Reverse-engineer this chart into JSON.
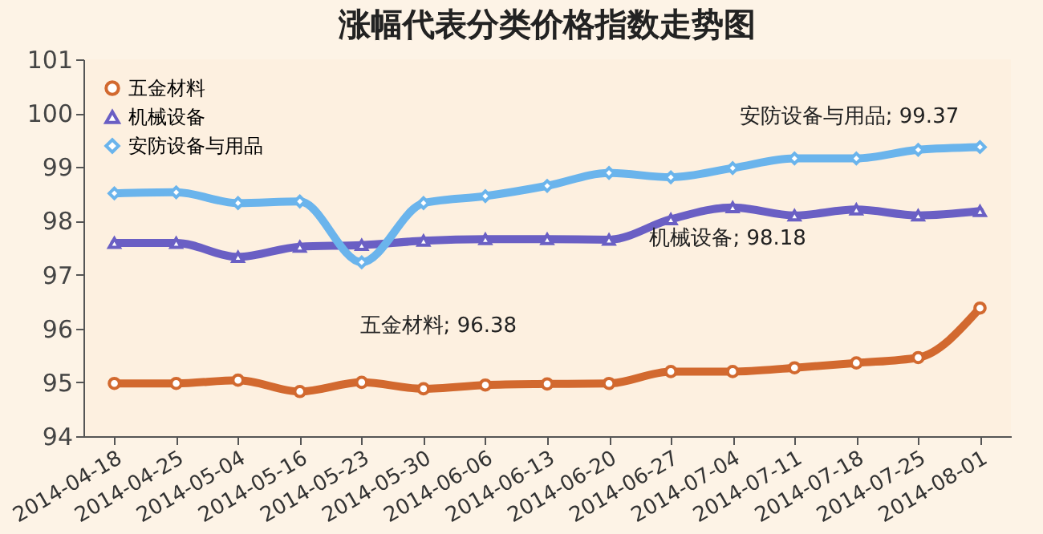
{
  "chart_data": {
    "type": "line",
    "title": "涨幅代表分类价格指数走势图",
    "categories": [
      "2014-04-18",
      "2014-04-25",
      "2014-05-04",
      "2014-05-16",
      "2014-05-23",
      "2014-05-30",
      "2014-06-06",
      "2014-06-13",
      "2014-06-20",
      "2014-06-27",
      "2014-07-04",
      "2014-07-11",
      "2014-07-18",
      "2014-07-25",
      "2014-08-01"
    ],
    "series": [
      {
        "name": "五金材料",
        "color": "#d2692f",
        "marker": "circle",
        "values": [
          94.98,
          94.98,
          95.04,
          94.83,
          95.0,
          94.88,
          94.95,
          94.97,
          94.98,
          95.2,
          95.2,
          95.27,
          95.36,
          95.46,
          96.38
        ]
      },
      {
        "name": "机械设备",
        "color": "#6a5fc4",
        "marker": "triangle",
        "values": [
          97.59,
          97.59,
          97.33,
          97.52,
          97.55,
          97.63,
          97.66,
          97.66,
          97.65,
          98.03,
          98.25,
          98.1,
          98.21,
          98.1,
          98.18
        ]
      },
      {
        "name": "安防设备与用品",
        "color": "#6ab4ec",
        "marker": "diamond",
        "values": [
          98.51,
          98.53,
          98.33,
          98.36,
          97.23,
          98.33,
          98.46,
          98.65,
          98.89,
          98.81,
          98.98,
          99.16,
          99.16,
          99.32,
          99.37
        ]
      }
    ],
    "annotations": [
      "五金材料; 96.38",
      "机械设备; 98.18",
      "安防设备与用品; 99.37"
    ],
    "ylim": [
      94,
      101
    ],
    "yticks": [
      94,
      95,
      96,
      97,
      98,
      99,
      100,
      101
    ],
    "grid": false,
    "legend": "top left",
    "line_style": "solid"
  }
}
